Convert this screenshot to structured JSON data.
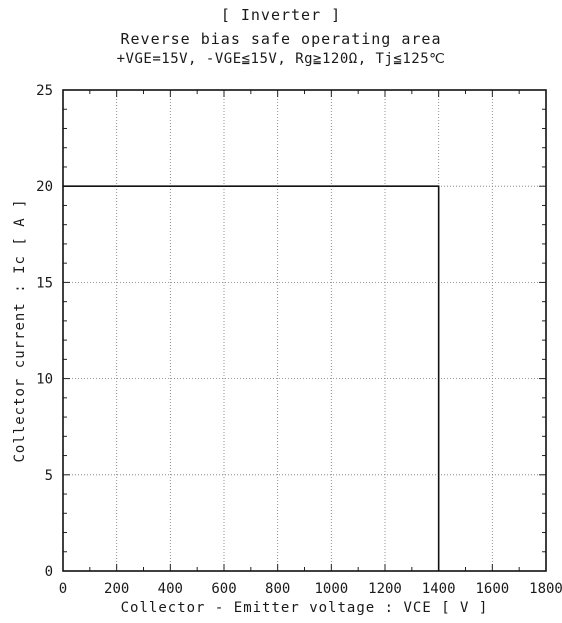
{
  "header": {
    "title": "[ Inverter ]",
    "subtitle": "Reverse bias safe operating area",
    "conditions": "+VGE=15V, -VGE≦15V, Rg≧120Ω, Tj≦125℃"
  },
  "chart_data": {
    "type": "line",
    "title": "[ Inverter ]",
    "subtitle": "Reverse bias safe operating area",
    "conditions": "+VGE=15V, -VGE≦15V, Rg≧120Ω, Tj≦125℃",
    "xlabel": "Collector - Emitter voltage : VCE [ V ]",
    "ylabel": "Collector current : Ic [ A ]",
    "xlim": [
      0,
      1800
    ],
    "ylim": [
      0,
      25
    ],
    "xticks": [
      0,
      200,
      400,
      600,
      800,
      1000,
      1200,
      1400,
      1600,
      1800
    ],
    "yticks": [
      0,
      5,
      10,
      15,
      20,
      25
    ],
    "grid": true,
    "series": [
      {
        "x": [
          0,
          1400,
          1400
        ],
        "y": [
          20,
          20,
          0
        ]
      }
    ]
  }
}
